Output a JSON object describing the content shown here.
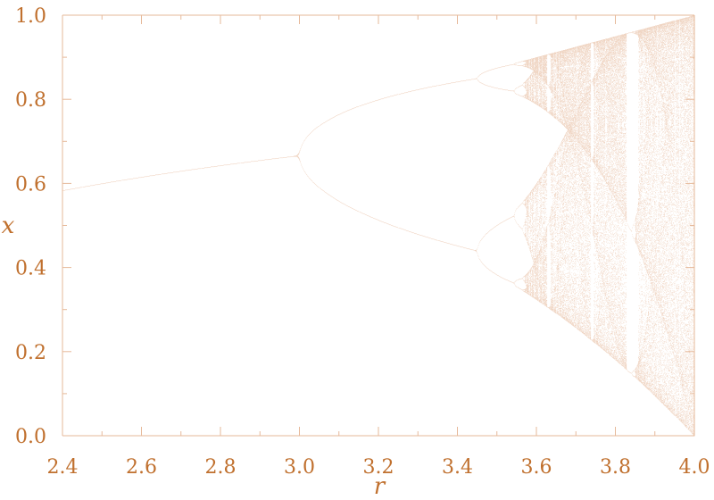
{
  "chart_data": {
    "type": "scatter",
    "title": "",
    "xlabel": "r",
    "ylabel": "x",
    "xlim": [
      2.4,
      4.0
    ],
    "ylim": [
      0.0,
      1.0
    ],
    "x_ticks": [
      "2.4",
      "2.6",
      "2.8",
      "3.0",
      "3.2",
      "3.4",
      "3.6",
      "3.8",
      "4.0"
    ],
    "y_ticks": [
      "0.0",
      "0.2",
      "0.4",
      "0.6",
      "0.8",
      "1.0"
    ],
    "grid": false,
    "legend": "none",
    "map": "x_{n+1} = r x_n (1 - x_n)",
    "r_steps": 1400,
    "transient_iterations": 400,
    "plotted_iterations": 220,
    "key_points": [
      {
        "r": 2.4,
        "x": 0.583
      },
      {
        "r": 3.0,
        "x": 0.667
      },
      {
        "r": 3.449,
        "x": 0.44
      },
      {
        "r": 3.449,
        "x": 0.852
      },
      {
        "r": 3.57,
        "x": 0.89
      },
      {
        "r": 3.83,
        "x": 0.96
      },
      {
        "r": 4.0,
        "x": 1.0
      },
      {
        "r": 4.0,
        "x": 0.0
      }
    ]
  },
  "colors": {
    "axis": "#e6b99a",
    "text": "#c0702e",
    "points": "#c86a2a"
  }
}
